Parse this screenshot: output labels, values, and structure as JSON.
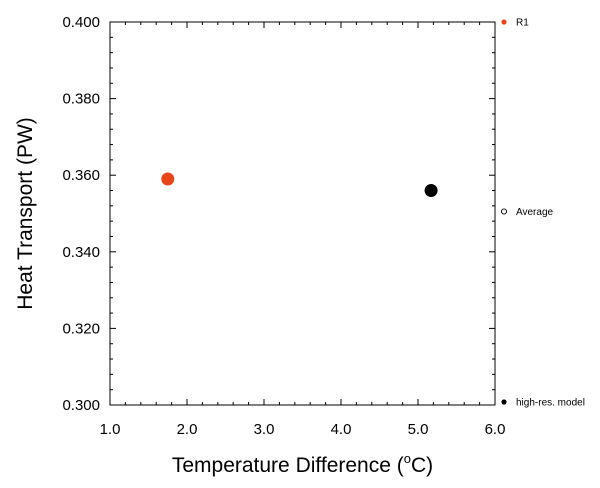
{
  "chart_data": {
    "type": "scatter",
    "xlabel": "Temperature Difference (",
    "xlabel_super": "o",
    "xlabel_suffix": "C)",
    "ylabel": "Heat Transport (PW)",
    "xlim": [
      1.0,
      6.0
    ],
    "ylim": [
      0.3,
      0.4
    ],
    "x_ticks": [
      1.0,
      2.0,
      3.0,
      4.0,
      5.0,
      6.0
    ],
    "x_tick_labels": [
      "1.0",
      "2.0",
      "3.0",
      "4.0",
      "5.0",
      "6.0"
    ],
    "y_ticks": [
      0.3,
      0.32,
      0.34,
      0.36,
      0.38,
      0.4
    ],
    "y_tick_labels": [
      "0.300",
      "0.320",
      "0.340",
      "0.360",
      "0.380",
      "0.400"
    ],
    "grid": false,
    "legend_placement": "right",
    "series": [
      {
        "name": "R1",
        "color": "#e8461a",
        "marker": "filled-circle",
        "points": [
          {
            "x": 1.75,
            "y": 0.359
          }
        ]
      },
      {
        "name": "Average",
        "color": "#000000",
        "marker": "open-circle",
        "points": []
      },
      {
        "name": "high-res. model",
        "color": "#000000",
        "marker": "filled-circle",
        "points": [
          {
            "x": 5.17,
            "y": 0.356
          }
        ]
      }
    ]
  }
}
